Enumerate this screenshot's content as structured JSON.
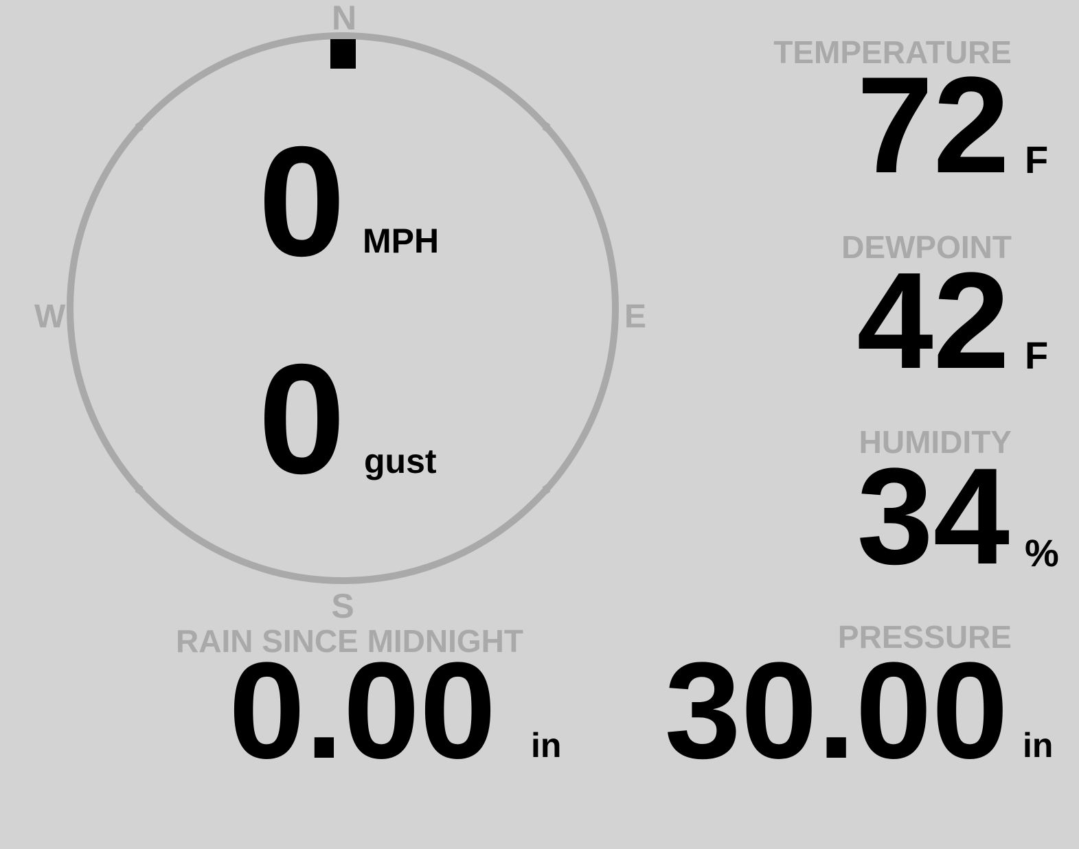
{
  "colors": {
    "background": "#d3d3d3",
    "label": "#a9a9a9",
    "value": "#000000",
    "needle": "#000000"
  },
  "wind": {
    "compass": {
      "north": "N",
      "east": "E",
      "south": "S",
      "west": "W"
    },
    "direction_degrees": 0,
    "speed": "0",
    "speed_unit": "MPH",
    "gust": "0",
    "gust_unit": "gust"
  },
  "temperature": {
    "label": "TEMPERATURE",
    "value": "72",
    "unit": "F"
  },
  "dewpoint": {
    "label": "DEWPOINT",
    "value": "42",
    "unit": "F"
  },
  "humidity": {
    "label": "HUMIDITY",
    "value": "34",
    "unit": "%"
  },
  "rain": {
    "label": "RAIN SINCE MIDNIGHT",
    "value": "0.00",
    "unit": "in"
  },
  "pressure": {
    "label": "PRESSURE",
    "value": "30.00",
    "unit": "in"
  }
}
